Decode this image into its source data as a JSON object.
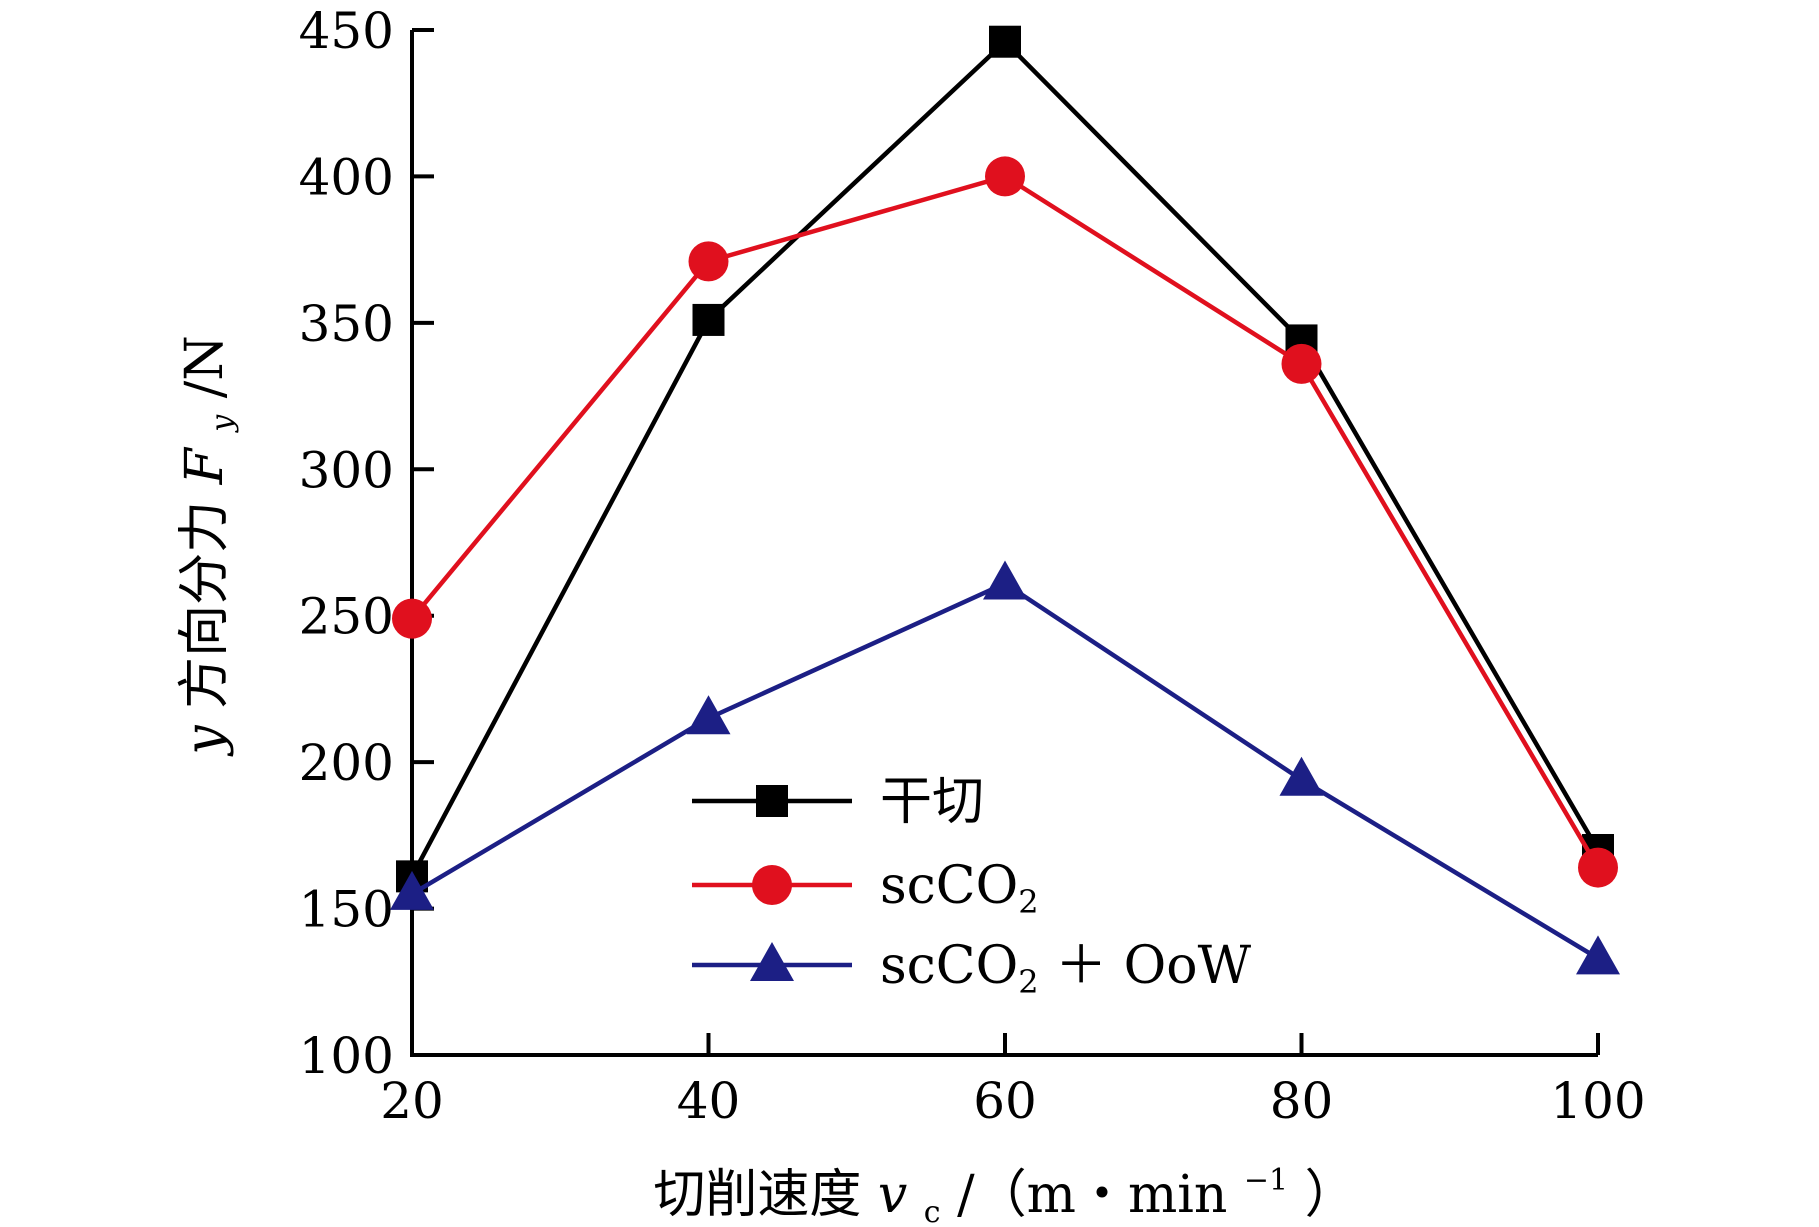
{
  "colors": {
    "dry": "#000000",
    "scco2": "#e0101e",
    "scco2_oow": "#1c1f85",
    "axis": "#000000"
  },
  "chart_data": {
    "type": "line",
    "x": [
      20,
      40,
      60,
      80,
      100
    ],
    "xlim": [
      20,
      100
    ],
    "ylim": [
      100,
      450
    ],
    "x_ticks": [
      "20",
      "40",
      "60",
      "80",
      "100"
    ],
    "y_ticks": [
      "100",
      "150",
      "200",
      "250",
      "300",
      "350",
      "400",
      "450"
    ],
    "xlabel": {
      "prefix": "切削速度 ",
      "var": "v",
      "sub": "c",
      "unit_open": "/（m・min",
      "sup": "−1",
      "unit_close": "）"
    },
    "ylabel": {
      "var_y": "y",
      "text": " 方向分力 ",
      "var_F": "F",
      "sub": "y",
      "unit": "/N"
    },
    "grid": false,
    "legend_position": "bottom-center",
    "series": [
      {
        "name": "干切",
        "marker": "square",
        "color_key": "dry",
        "values": [
          161,
          351,
          446,
          344,
          170
        ]
      },
      {
        "name": "scCO2",
        "name_base": "scCO",
        "name_sub": "2",
        "name_suffix": "",
        "marker": "circle",
        "color_key": "scco2",
        "values": [
          249,
          371,
          400,
          336,
          164
        ]
      },
      {
        "name": "scCO2 + OoW",
        "name_base": "scCO",
        "name_sub": "2",
        "name_suffix": " ＋ OoW",
        "marker": "triangle",
        "color_key": "scco2_oow",
        "values": [
          155,
          215,
          261,
          194,
          133
        ]
      }
    ]
  }
}
